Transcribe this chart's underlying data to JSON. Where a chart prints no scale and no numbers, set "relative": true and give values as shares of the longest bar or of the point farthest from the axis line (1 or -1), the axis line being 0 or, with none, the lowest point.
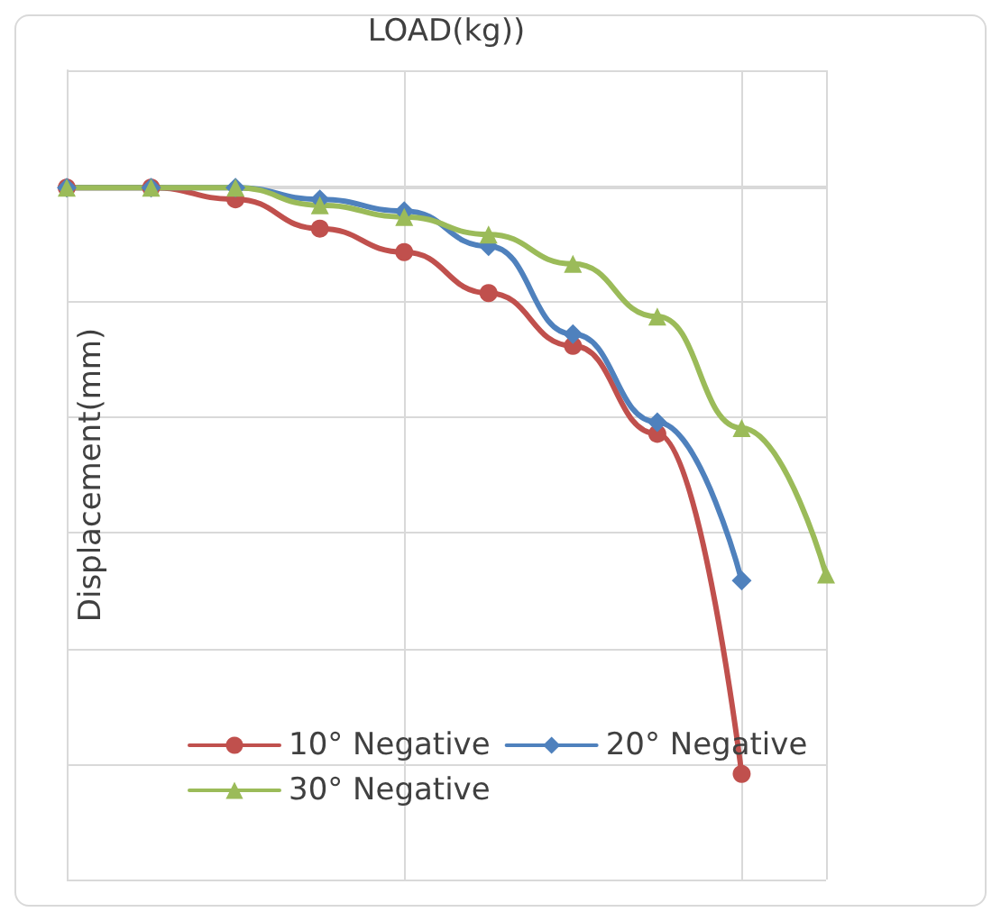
{
  "chart_data": {
    "type": "line",
    "relative": true,
    "xlabel": "LOAD(kg))",
    "ylabel": "Displacement(mm)",
    "categories": [
      null,
      null,
      null,
      null,
      null,
      null,
      null,
      null,
      null,
      null
    ],
    "grid": true,
    "legend": "bottom",
    "line_style": "solid",
    "series": [
      {
        "name": "10° Negative",
        "color": "#c0504d",
        "marker": "circle",
        "values": [
          0,
          0,
          -0.02,
          -0.07,
          -0.11,
          -0.18,
          -0.27,
          -0.42,
          -1,
          null
        ]
      },
      {
        "name": "20° Negative",
        "color": "#4f81bd",
        "marker": "diamond",
        "values": [
          0,
          0,
          0,
          -0.02,
          -0.04,
          -0.1,
          -0.25,
          -0.4,
          -0.67,
          null
        ]
      },
      {
        "name": "30° Negative",
        "color": "#9bbb59",
        "marker": "triangle",
        "values": [
          0,
          0,
          0,
          -0.03,
          -0.05,
          -0.08,
          -0.13,
          -0.22,
          -0.41,
          -0.66
        ]
      }
    ]
  }
}
